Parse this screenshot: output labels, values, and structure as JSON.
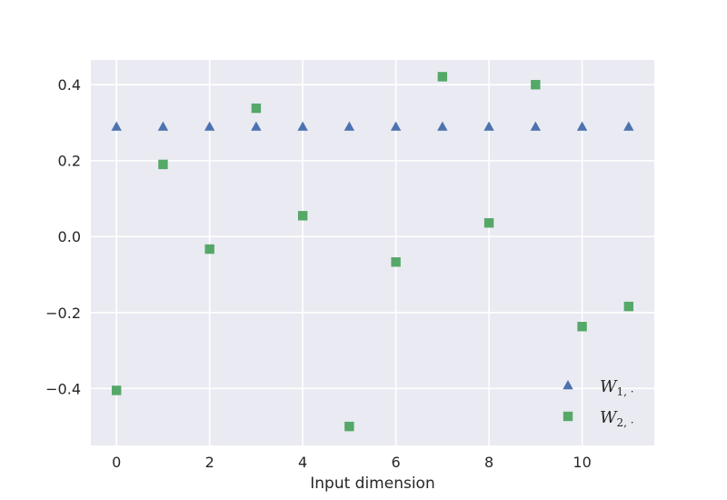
{
  "chart_data": {
    "type": "scatter",
    "title": "",
    "xlabel": "Input dimension",
    "ylabel": "",
    "xlim": [
      -0.55,
      11.55
    ],
    "ylim": [
      -0.55,
      0.465
    ],
    "xticks": [
      0,
      2,
      4,
      6,
      8,
      10
    ],
    "xtick_labels": [
      "0",
      "2",
      "4",
      "6",
      "8",
      "10"
    ],
    "yticks": [
      -0.4,
      -0.2,
      0.0,
      0.2,
      0.4
    ],
    "ytick_labels": [
      "−0.4",
      "−0.2",
      "0.0",
      "0.2",
      "0.4"
    ],
    "grid": true,
    "legend_position": "lower-right",
    "background": "#eaeaf2",
    "series": [
      {
        "name": "W1,·",
        "legend_main": "W",
        "legend_sub": "1, ·",
        "marker": "triangle",
        "color": "#4c72b0",
        "x": [
          0,
          1,
          2,
          3,
          4,
          5,
          6,
          7,
          8,
          9,
          10,
          11
        ],
        "y": [
          0.289,
          0.289,
          0.289,
          0.289,
          0.289,
          0.289,
          0.289,
          0.289,
          0.289,
          0.289,
          0.289,
          0.289
        ]
      },
      {
        "name": "W2,·",
        "legend_main": "W",
        "legend_sub": "2, ·",
        "marker": "square",
        "color": "#55a868",
        "x": [
          0,
          1,
          2,
          3,
          4,
          5,
          6,
          7,
          8,
          9,
          10,
          11
        ],
        "y": [
          -0.405,
          0.19,
          -0.033,
          0.338,
          0.055,
          -0.5,
          -0.067,
          0.421,
          0.036,
          0.4,
          -0.237,
          -0.184
        ]
      }
    ]
  }
}
